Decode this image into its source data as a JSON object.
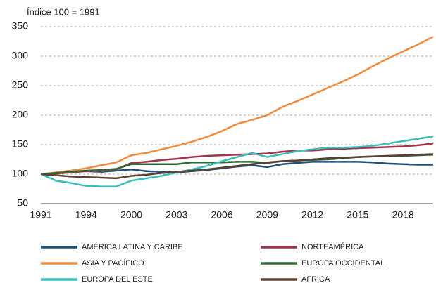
{
  "chart_data": {
    "type": "line",
    "subtitle": "Índice 100 = 1991",
    "categories": [
      "1991",
      null,
      null,
      "1994",
      null,
      null,
      "2000",
      null,
      null,
      "2003",
      null,
      null,
      "2006",
      null,
      null,
      "2009",
      null,
      null,
      "2012",
      null,
      null,
      "2015",
      null,
      null,
      "2018",
      null,
      null
    ],
    "ylim": [
      50,
      350
    ],
    "yticks": [
      50,
      100,
      150,
      200,
      250,
      300,
      350
    ],
    "grid": true,
    "series": [
      {
        "name": "AMÉRICA LATINA Y CARIBE",
        "color": "#1f4e79",
        "values": [
          100,
          102,
          104,
          105,
          104,
          106,
          108,
          105,
          104,
          103,
          105,
          107,
          110,
          113,
          115,
          112,
          117,
          119,
          121,
          121,
          121,
          121,
          120,
          118,
          117,
          116,
          116
        ]
      },
      {
        "name": "NORTEAMÉRICA",
        "color": "#a3324a",
        "values": [
          100,
          101,
          103,
          105,
          106,
          108,
          119,
          121,
          124,
          126,
          129,
          131,
          132,
          133,
          134,
          135,
          138,
          140,
          140,
          142,
          143,
          144,
          145,
          146,
          147,
          149,
          152
        ]
      },
      {
        "name": "ASIA Y PACÍFICO",
        "color": "#f08a3c",
        "values": [
          100,
          103,
          106,
          110,
          115,
          120,
          132,
          136,
          142,
          148,
          155,
          163,
          173,
          185,
          192,
          200,
          214,
          224,
          235,
          246,
          257,
          269,
          283,
          296,
          308,
          320,
          333
        ]
      },
      {
        "name": "EUROPA OCCIDENTAL",
        "color": "#2e6b35",
        "values": [
          100,
          102,
          104,
          106,
          107,
          109,
          117,
          117,
          117,
          117,
          120,
          120,
          120,
          121,
          121,
          119,
          122,
          123,
          124,
          125,
          127,
          129,
          130,
          131,
          131,
          132,
          133
        ]
      },
      {
        "name": "EUROPA DEL ESTE",
        "color": "#3bbdb8",
        "values": [
          100,
          89,
          85,
          80,
          79,
          79,
          89,
          93,
          97,
          103,
          108,
          114,
          122,
          129,
          136,
          129,
          134,
          139,
          142,
          145,
          145,
          146,
          148,
          152,
          156,
          160,
          164
        ]
      },
      {
        "name": "ÁFRICA",
        "color": "#5c4033",
        "values": [
          100,
          98,
          96,
          95,
          94,
          93,
          97,
          99,
          102,
          104,
          106,
          108,
          111,
          114,
          117,
          120,
          122,
          123,
          125,
          127,
          128,
          129,
          130,
          131,
          132,
          133,
          134
        ]
      }
    ]
  }
}
